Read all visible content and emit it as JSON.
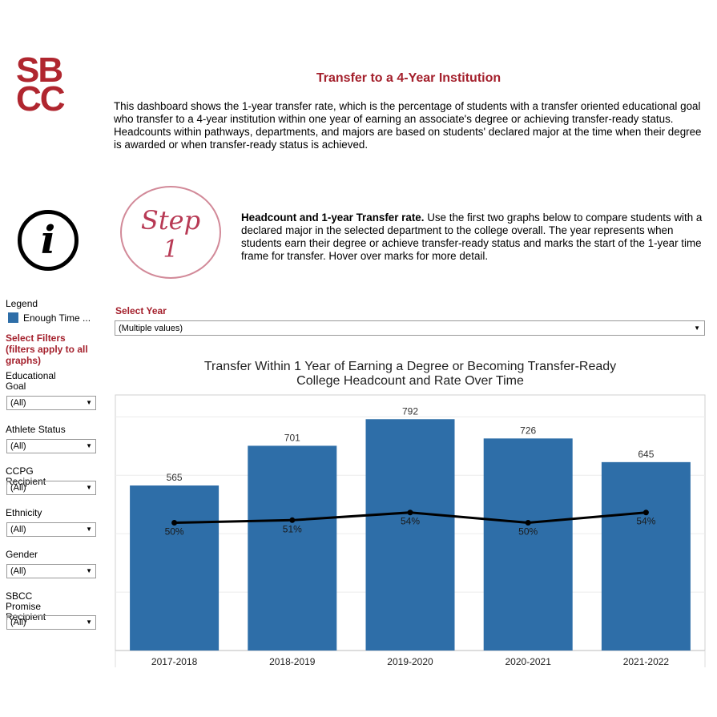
{
  "logo": {
    "line1": "SB",
    "line2": "CC"
  },
  "header": {
    "title": "Transfer to a 4-Year Institution",
    "description": "This dashboard shows the 1-year transfer rate, which is the percentage of students with a transfer oriented educational goal who transfer to a 4-year institution within one year of earning an associate's degree or achieving transfer-ready status. Headcounts within pathways, departments, and majors are based on students' declared major at the time when their degree is awarded or when transfer-ready status is achieved."
  },
  "step": {
    "label1": "Step",
    "label2": "1",
    "bold": "Headcount and 1-year Transfer rate.",
    "text": " Use the first two graphs below to compare students with a declared major in the selected department to the college overall. The year represents when students earn their degree or achieve transfer-ready status and marks the start of the 1-year time frame for transfer. Hover over marks for more detail."
  },
  "legend": {
    "title": "Legend",
    "item": "Enough Time ...",
    "color": "#2e6ea8"
  },
  "filters": {
    "heading": "Select Filters (filters apply to all graphs)",
    "items": [
      {
        "label": "Educational Goal",
        "value": "(All)"
      },
      {
        "label": "Athlete Status",
        "value": "(All)"
      },
      {
        "label": "CCPG Recipient",
        "value": "(All)"
      },
      {
        "label": "Ethnicity",
        "value": "(All)"
      },
      {
        "label": "Gender",
        "value": "(All)"
      },
      {
        "label": "SBCC Promise Recipient",
        "value": "(All)"
      }
    ]
  },
  "year": {
    "label": "Select Year",
    "value": "(Multiple values)"
  },
  "chart_data": {
    "type": "bar",
    "title": "Transfer Within 1 Year of Earning a Degree or Becoming Transfer-Ready",
    "subtitle": "College Headcount and Rate Over Time",
    "categories": [
      "2017-2018",
      "2018-2019",
      "2019-2020",
      "2020-2021",
      "2021-2022"
    ],
    "series": [
      {
        "type": "bar",
        "values": [
          565,
          701,
          792,
          726,
          645
        ],
        "color": "#2e6ea8"
      },
      {
        "type": "line",
        "values": [
          0.5,
          0.51,
          0.54,
          0.5,
          0.54
        ],
        "labels": [
          "50%",
          "51%",
          "54%",
          "50%",
          "54%"
        ],
        "color": "#000000"
      }
    ],
    "ylim": [
      0,
      875
    ],
    "gridlines": [
      200,
      400,
      600,
      800
    ],
    "rate_ylim": [
      0,
      1
    ]
  }
}
